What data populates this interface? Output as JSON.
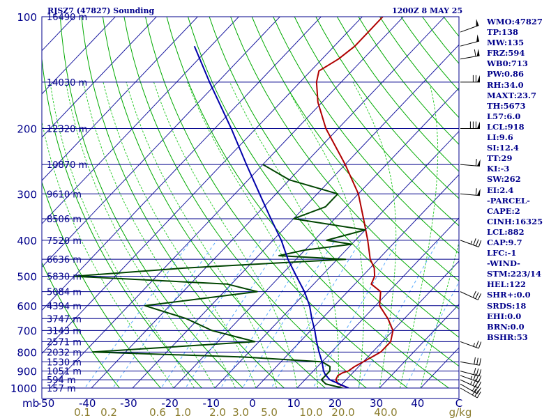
{
  "header": {
    "station": "RJSZ7 (47827) Sounding",
    "time": "1200Z  8 MAY 25"
  },
  "side_panel": {
    "items": [
      "WMO:47827",
      "TP:138",
      "MW:135",
      "FRZ:594",
      "WB0:713",
      "PW:0.86",
      "RH:34.0",
      "MAXT:23.7",
      "TH:5673",
      "L57:6.0",
      "LCL:918",
      "LI:9.6",
      "SI:12.4",
      "TT:29",
      "KI:-3",
      "SW:262",
      "EI:2.4",
      "-PARCEL-",
      "CAPE:2",
      "CINH:16325",
      "LCL:882",
      "CAP:9.7",
      "LFC:-1",
      "-WIND-",
      "STM:223/14",
      "HEL:122",
      "SHR+:0.0",
      "SRDS:18",
      "EHI:0.0",
      "BRN:0.0",
      "BSHR:53"
    ]
  },
  "colors": {
    "frame": "#00008b",
    "isobar": "#00008b",
    "isotherm": "#1a1aa0",
    "dry_adiabat": "#00aa00",
    "moist_adiabat": "#33cc33",
    "mixing_ratio": "#55aaff",
    "temperature": "#b00000",
    "dewpoint": "#004400",
    "parcel": "#0000aa",
    "mixing_ratio_label": "#8b7d2e",
    "wind_barb": "#000000"
  },
  "chart_data": {
    "type": "line",
    "title": "RJSZ7 (47827) Sounding",
    "subtitle": "1200Z  8 MAY 25",
    "xlabel": "",
    "ylabel": "mb",
    "x_axis_ticks": [
      "-50",
      "-40",
      "-30",
      "-20",
      "-10",
      "0",
      "10",
      "20",
      "30",
      "40",
      "C"
    ],
    "y_axis": {
      "scale": "log",
      "pressure_labels": [
        "100",
        "200",
        "300",
        "400",
        "500",
        "600",
        "700",
        "800",
        "900",
        "1000"
      ],
      "range_mb": [
        100,
        1000
      ]
    },
    "height_labels": [
      {
        "p": 100,
        "label": "16490 m"
      },
      {
        "p": 150,
        "label": "14030 m"
      },
      {
        "p": 200,
        "label": "12320 m"
      },
      {
        "p": 250,
        "label": "10870 m"
      },
      {
        "p": 300,
        "label": "9610 m"
      },
      {
        "p": 350,
        "label": "8506 m"
      },
      {
        "p": 400,
        "label": "7520 m"
      },
      {
        "p": 450,
        "label": "6636 m"
      },
      {
        "p": 500,
        "label": "5830 m"
      },
      {
        "p": 550,
        "label": "5084 m"
      },
      {
        "p": 600,
        "label": "4394 m"
      },
      {
        "p": 650,
        "label": "3747 m"
      },
      {
        "p": 700,
        "label": "3143 m"
      },
      {
        "p": 750,
        "label": "2571 m"
      },
      {
        "p": 800,
        "label": "2032 m"
      },
      {
        "p": 850,
        "label": "1530 m"
      },
      {
        "p": 900,
        "label": "1051 m"
      },
      {
        "p": 950,
        "label": "594 m"
      },
      {
        "p": 1000,
        "label": "157 m"
      }
    ],
    "mixing_ratio_labels": [
      "0.1",
      "0.2",
      "0.6",
      "1.0",
      "2.0",
      "3.0",
      "5.0",
      "10.0",
      "20.0",
      "40.0",
      "g/kg"
    ],
    "mixing_ratio_values": [
      0.1,
      0.2,
      0.6,
      1.0,
      2.0,
      3.0,
      5.0,
      10.0,
      20.0,
      40.0
    ],
    "series": [
      {
        "key": "temperature",
        "points": [
          [
            1000,
            22.5
          ],
          [
            975,
            19
          ],
          [
            950,
            17.5
          ],
          [
            925,
            17
          ],
          [
            910,
            17.5
          ],
          [
            900,
            18.5
          ],
          [
            875,
            19
          ],
          [
            850,
            20
          ],
          [
            800,
            22
          ],
          [
            750,
            22
          ],
          [
            700,
            20
          ],
          [
            650,
            16
          ],
          [
            600,
            11
          ],
          [
            550,
            8
          ],
          [
            525,
            4
          ],
          [
            500,
            3
          ],
          [
            475,
            1
          ],
          [
            450,
            -2
          ],
          [
            400,
            -7
          ],
          [
            350,
            -13
          ],
          [
            300,
            -20
          ],
          [
            250,
            -30
          ],
          [
            200,
            -43
          ],
          [
            170,
            -51
          ],
          [
            150,
            -56
          ],
          [
            140,
            -58
          ],
          [
            130,
            -56
          ],
          [
            120,
            -55
          ],
          [
            110,
            -55
          ],
          [
            100,
            -55
          ]
        ]
      },
      {
        "key": "dewpoint",
        "points": [
          [
            1000,
            21
          ],
          [
            975,
            16
          ],
          [
            950,
            14
          ],
          [
            925,
            14
          ],
          [
            900,
            14
          ],
          [
            875,
            13
          ],
          [
            850,
            10
          ],
          [
            825,
            -10
          ],
          [
            800,
            -48
          ],
          [
            750,
            -11
          ],
          [
            700,
            -24
          ],
          [
            650,
            -33
          ],
          [
            600,
            -46
          ],
          [
            550,
            -22
          ],
          [
            525,
            -31
          ],
          [
            500,
            -70
          ],
          [
            475,
            -45
          ],
          [
            450,
            -8
          ],
          [
            440,
            -25
          ],
          [
            425,
            -20
          ],
          [
            410,
            -10
          ],
          [
            400,
            -17
          ],
          [
            375,
            -10
          ],
          [
            350,
            -30
          ],
          [
            325,
            -25
          ],
          [
            300,
            -25
          ],
          [
            275,
            -40
          ],
          [
            250,
            -50
          ]
        ]
      },
      {
        "key": "parcel",
        "points": [
          [
            1000,
            22.5
          ],
          [
            950,
            16
          ],
          [
            918,
            13.6
          ],
          [
            900,
            12.5
          ],
          [
            850,
            10
          ],
          [
            800,
            7
          ],
          [
            750,
            4
          ],
          [
            700,
            1
          ],
          [
            650,
            -2.5
          ],
          [
            600,
            -6
          ],
          [
            550,
            -10.5
          ],
          [
            500,
            -16
          ],
          [
            450,
            -22
          ],
          [
            400,
            -28
          ],
          [
            350,
            -35.5
          ],
          [
            300,
            -44
          ],
          [
            250,
            -54
          ],
          [
            200,
            -66
          ],
          [
            150,
            -82
          ],
          [
            120,
            -94
          ]
        ]
      }
    ],
    "wind_barbs": [
      {
        "p": 1000,
        "dir": 240,
        "spd": 30
      },
      {
        "p": 975,
        "dir": 240,
        "spd": 30
      },
      {
        "p": 950,
        "dir": 245,
        "spd": 35
      },
      {
        "p": 925,
        "dir": 250,
        "spd": 35
      },
      {
        "p": 900,
        "dir": 255,
        "spd": 30
      },
      {
        "p": 850,
        "dir": 260,
        "spd": 30
      },
      {
        "p": 750,
        "dir": 250,
        "spd": 25
      },
      {
        "p": 550,
        "dir": 245,
        "spd": 30
      },
      {
        "p": 400,
        "dir": 250,
        "spd": 35
      },
      {
        "p": 300,
        "dir": 265,
        "spd": 60
      },
      {
        "p": 250,
        "dir": 265,
        "spd": 60
      },
      {
        "p": 200,
        "dir": 270,
        "spd": 80
      },
      {
        "p": 150,
        "dir": 270,
        "spd": 70
      },
      {
        "p": 130,
        "dir": 280,
        "spd": 60
      },
      {
        "p": 120,
        "dir": 285,
        "spd": 50
      },
      {
        "p": 110,
        "dir": 290,
        "spd": 50
      }
    ],
    "grid": true,
    "legend": "none"
  }
}
